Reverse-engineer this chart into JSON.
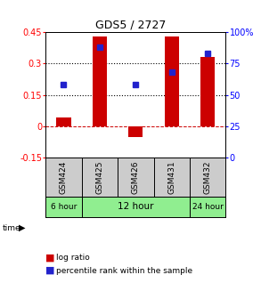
{
  "title": "GDS5 / 2727",
  "samples": [
    "GSM424",
    "GSM425",
    "GSM426",
    "GSM431",
    "GSM432"
  ],
  "log_ratio": [
    0.04,
    0.43,
    -0.05,
    0.43,
    0.33
  ],
  "percentile_rank": [
    58,
    88,
    58,
    68,
    83
  ],
  "bar_color": "#cc0000",
  "dot_color": "#2222cc",
  "ylim_left": [
    -0.15,
    0.45
  ],
  "ylim_right": [
    0,
    100
  ],
  "yticks_left": [
    -0.15,
    0,
    0.15,
    0.3,
    0.45
  ],
  "yticks_right": [
    0,
    25,
    50,
    75,
    100
  ],
  "ytick_labels_left": [
    "-0.15",
    "0",
    "0.15",
    "0.3",
    "0.45"
  ],
  "ytick_labels_right": [
    "0",
    "25",
    "50",
    "75",
    "100%"
  ],
  "hlines_dotted": [
    0.15,
    0.3
  ],
  "hline_zero_color": "#cc0000",
  "hline_dotted_color": "#000000",
  "bar_width": 0.4,
  "dot_size": 22,
  "background_color": "#ffffff",
  "sample_box_color": "#cccccc",
  "green_color": "#90ee90",
  "time_groups": [
    {
      "label": "6 hour",
      "start": 0,
      "end": 0,
      "fsize": 6.5
    },
    {
      "label": "12 hour",
      "start": 1,
      "end": 3,
      "fsize": 7.5
    },
    {
      "label": "24 hour",
      "start": 4,
      "end": 4,
      "fsize": 6.5
    }
  ]
}
